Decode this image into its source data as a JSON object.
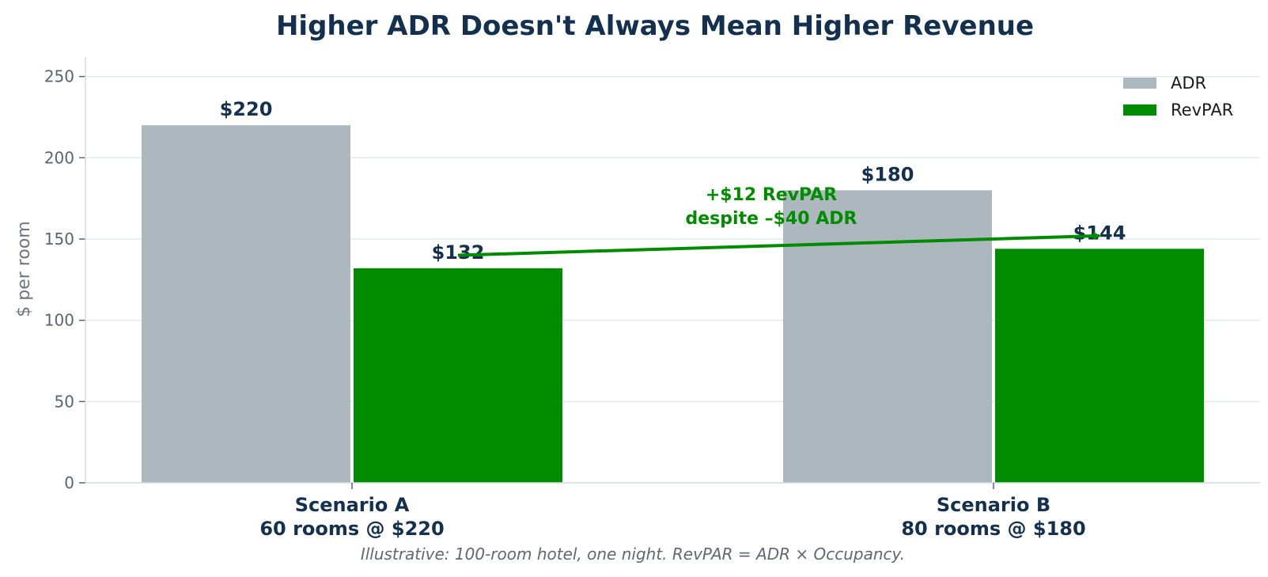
{
  "chart_data": {
    "type": "bar",
    "title": "Higher ADR Doesn't Always Mean Higher Revenue",
    "ylabel": "$ per room",
    "xlabel": "",
    "ylim": [
      0,
      262
    ],
    "yticks": [
      0,
      50,
      100,
      150,
      200,
      250
    ],
    "grid": true,
    "legend_position": "top-right",
    "categories": [
      {
        "line1": "Scenario A",
        "line2": "60 rooms @ $220"
      },
      {
        "line1": "Scenario B",
        "line2": "80 rooms @ $180"
      }
    ],
    "series": [
      {
        "name": "ADR",
        "color": "#adb7be",
        "values": [
          220,
          180
        ],
        "labels": [
          "$220",
          "$180"
        ]
      },
      {
        "name": "RevPAR",
        "color": "#008c00",
        "values": [
          132,
          144
        ],
        "labels": [
          "$132",
          "$144"
        ]
      }
    ],
    "annotation": {
      "line1": "+$12 RevPAR",
      "line2": "despite –$40 ADR",
      "color": "#008c00",
      "arrow_from": {
        "category": 0,
        "series": 1,
        "y": 140
      },
      "arrow_to": {
        "category": 1,
        "series": 1,
        "y": 152
      }
    },
    "footnote": "Illustrative: 100-room hotel, one night. RevPAR = ADR × Occupancy."
  }
}
